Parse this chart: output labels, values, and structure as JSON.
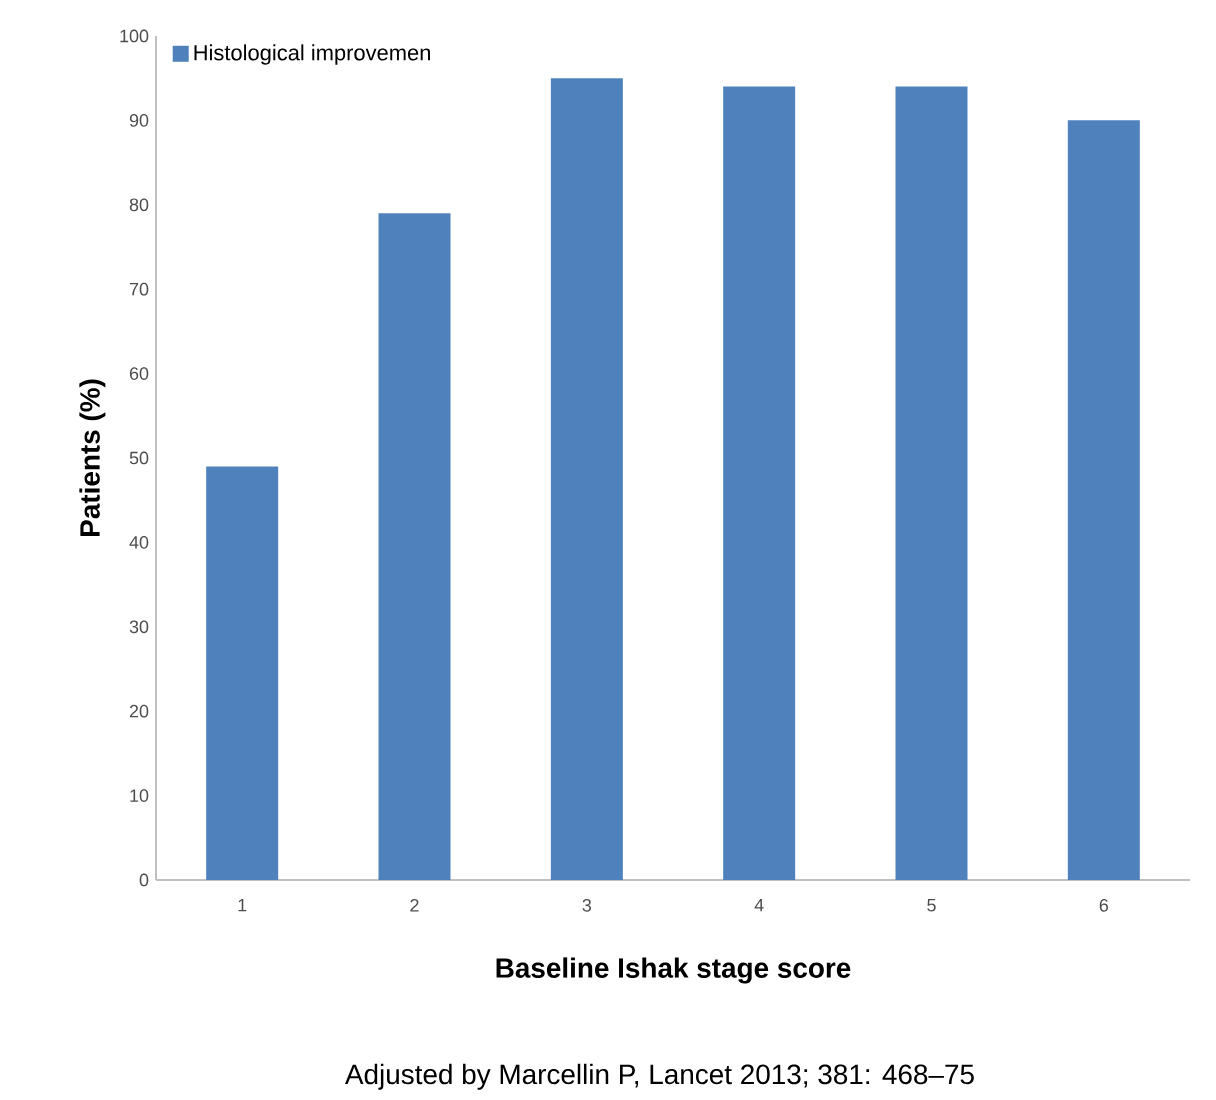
{
  "chart_data": {
    "type": "bar",
    "xlabel": "Baseline  Ishak stage score",
    "ylabel": "Patients (%)",
    "annotations": [
      "Adjusted by Marcellin P, Lancet 2013; 381: 468–75"
    ],
    "categories": [
      "1",
      "2",
      "3",
      "4",
      "5",
      "6"
    ],
    "series": [
      {
        "name": "Histological improvemen",
        "color": "#4f81bd",
        "values": [
          49,
          79,
          95,
          94,
          94,
          90
        ]
      }
    ],
    "ylim": [
      0,
      100
    ],
    "yticks": [
      0,
      10,
      20,
      30,
      40,
      50,
      60,
      70,
      80,
      90,
      100
    ],
    "legend": "top left",
    "grid": false
  }
}
